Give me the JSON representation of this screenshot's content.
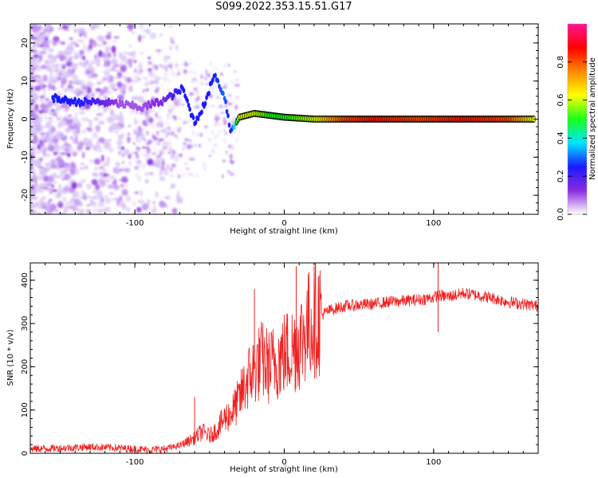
{
  "figure": {
    "title": "S099.2022.353.15.51.G17"
  },
  "chart_data": [
    {
      "type": "heatmap",
      "title": "",
      "xlabel": "Height of straight line (km)",
      "ylabel": "Frequency (Hz)",
      "xlim": [
        -170,
        170
      ],
      "ylim": [
        -25,
        25
      ],
      "x_ticks": [
        -100,
        0,
        100
      ],
      "y_ticks": [
        -20,
        -10,
        0,
        10,
        20
      ],
      "colorbar": {
        "label": "Normalized spectral amplitude",
        "range": [
          0,
          1
        ],
        "ticks": [
          0.0,
          0.2,
          0.4,
          0.6,
          0.8
        ],
        "colormap": [
          "#ffffff",
          "#8a2be2",
          "#1a1aff",
          "#00e5ff",
          "#19ff19",
          "#ffff00",
          "#ff8800",
          "#ff0000",
          "#ff1493"
        ]
      },
      "ridge_trace": [
        {
          "x": -155,
          "y": 5.5,
          "amp": 0.25
        },
        {
          "x": -140,
          "y": 4.5,
          "amp": 0.25
        },
        {
          "x": -125,
          "y": 4.5,
          "amp": 0.2
        },
        {
          "x": -110,
          "y": 4.0,
          "amp": 0.1
        },
        {
          "x": -95,
          "y": 3.0,
          "amp": 0.1
        },
        {
          "x": -80,
          "y": 5.0,
          "amp": 0.15
        },
        {
          "x": -68,
          "y": 8.0,
          "amp": 0.25
        },
        {
          "x": -60,
          "y": -1.0,
          "amp": 0.25
        },
        {
          "x": -52,
          "y": 5.0,
          "amp": 0.25
        },
        {
          "x": -47,
          "y": 12.0,
          "amp": 0.25
        },
        {
          "x": -40,
          "y": 6.0,
          "amp": 0.3
        },
        {
          "x": -36,
          "y": -3.0,
          "amp": 0.2
        },
        {
          "x": -30,
          "y": 0.5,
          "amp": 0.6
        },
        {
          "x": -20,
          "y": 1.5,
          "amp": 0.6
        },
        {
          "x": -10,
          "y": 1.0,
          "amp": 0.5
        },
        {
          "x": 0,
          "y": 0.5,
          "amp": 0.5
        },
        {
          "x": 20,
          "y": 0.0,
          "amp": 0.6
        },
        {
          "x": 40,
          "y": 0.0,
          "amp": 0.8
        },
        {
          "x": 60,
          "y": 0.0,
          "amp": 0.85
        },
        {
          "x": 90,
          "y": 0.0,
          "amp": 0.8
        },
        {
          "x": 120,
          "y": 0.0,
          "amp": 0.85
        },
        {
          "x": 150,
          "y": 0.0,
          "amp": 0.8
        },
        {
          "x": 168,
          "y": 0.0,
          "amp": 0.6
        }
      ]
    },
    {
      "type": "line",
      "title": "",
      "xlabel": "Height of straight line (km)",
      "ylabel": "SNR (10 * v/v)",
      "xlim": [
        -170,
        170
      ],
      "ylim": [
        0,
        440
      ],
      "x_ticks": [
        -100,
        0,
        100
      ],
      "y_ticks": [
        0,
        100,
        200,
        300,
        400
      ],
      "color": "#ee2222",
      "series": [
        {
          "x": [
            -170,
            -150,
            -130,
            -110,
            -90,
            -80,
            -70,
            -60,
            -55,
            -50,
            -45,
            -40,
            -35,
            -30,
            -25,
            -20,
            -15,
            -10,
            -5,
            0,
            5,
            10,
            15,
            20,
            25,
            30,
            40,
            50,
            60,
            70,
            80,
            90,
            100,
            103,
            110,
            120,
            130,
            140,
            150,
            160,
            170
          ],
          "values": [
            10,
            12,
            15,
            12,
            8,
            10,
            18,
            35,
            50,
            40,
            55,
            80,
            95,
            125,
            170,
            195,
            215,
            200,
            215,
            230,
            240,
            255,
            290,
            310,
            320,
            330,
            340,
            343,
            345,
            350,
            352,
            355,
            360,
            365,
            362,
            370,
            365,
            358,
            350,
            345,
            340
          ]
        }
      ],
      "spikes": [
        {
          "x": -60,
          "y": 130
        },
        {
          "x": -20,
          "y": 380
        },
        {
          "x": 8,
          "y": 432
        },
        {
          "x": 103,
          "y": 440
        },
        {
          "x": 103,
          "y": 280
        }
      ]
    }
  ]
}
